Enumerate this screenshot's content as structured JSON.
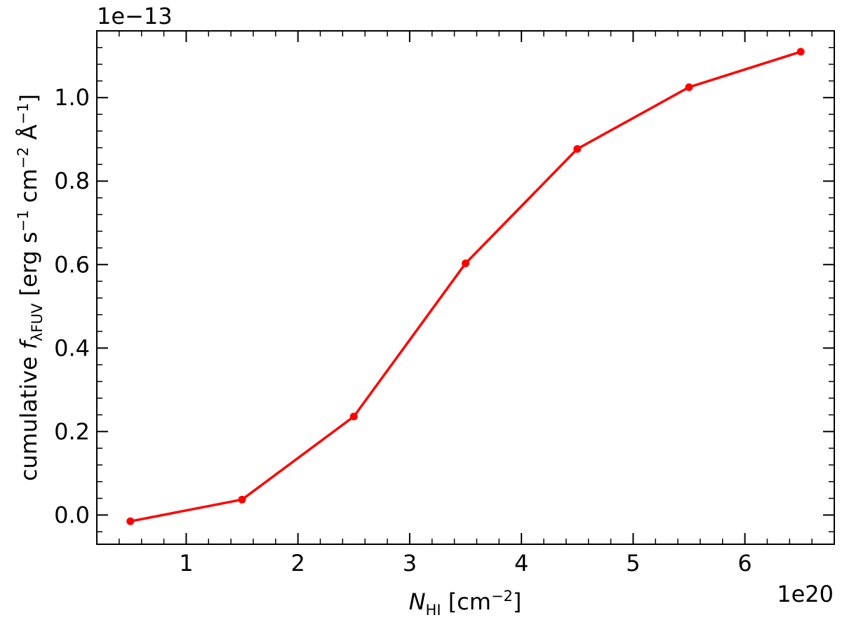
{
  "chart_data": {
    "type": "line",
    "x_offset_label": "1e20",
    "y_offset_label": "1e−13",
    "xlabel": {
      "symbol": "N",
      "subscript": "HI",
      "units": " [cm",
      "units_exp": "−2",
      "units_close": "]"
    },
    "ylabel": {
      "prefix": "cumulative ",
      "symbol": "f",
      "subscript": "λFUV",
      "part1": " [erg s",
      "exp1": "−1",
      "part2": " cm",
      "exp2": "−2",
      "part3": " Å",
      "exp3": "−1",
      "close": "]"
    },
    "xlim": [
      0.2,
      6.8
    ],
    "ylim": [
      -0.07,
      1.16
    ],
    "x_ticks": [
      1,
      2,
      3,
      4,
      5,
      6
    ],
    "x_tick_labels": [
      "1",
      "2",
      "3",
      "4",
      "5",
      "6"
    ],
    "y_ticks": [
      0.0,
      0.2,
      0.4,
      0.6,
      0.8,
      1.0
    ],
    "y_tick_labels": [
      "0.0",
      "0.2",
      "0.4",
      "0.6",
      "0.8",
      "1.0"
    ],
    "x_minor_step": 0.2,
    "y_minor_step": 0.04,
    "grid": false,
    "series": [
      {
        "color": "#ff0000",
        "x": [
          0.5,
          1.5,
          2.5,
          3.5,
          4.5,
          5.5,
          6.5
        ],
        "y": [
          -0.015,
          0.037,
          0.236,
          0.603,
          0.877,
          1.025,
          1.11
        ]
      }
    ]
  }
}
